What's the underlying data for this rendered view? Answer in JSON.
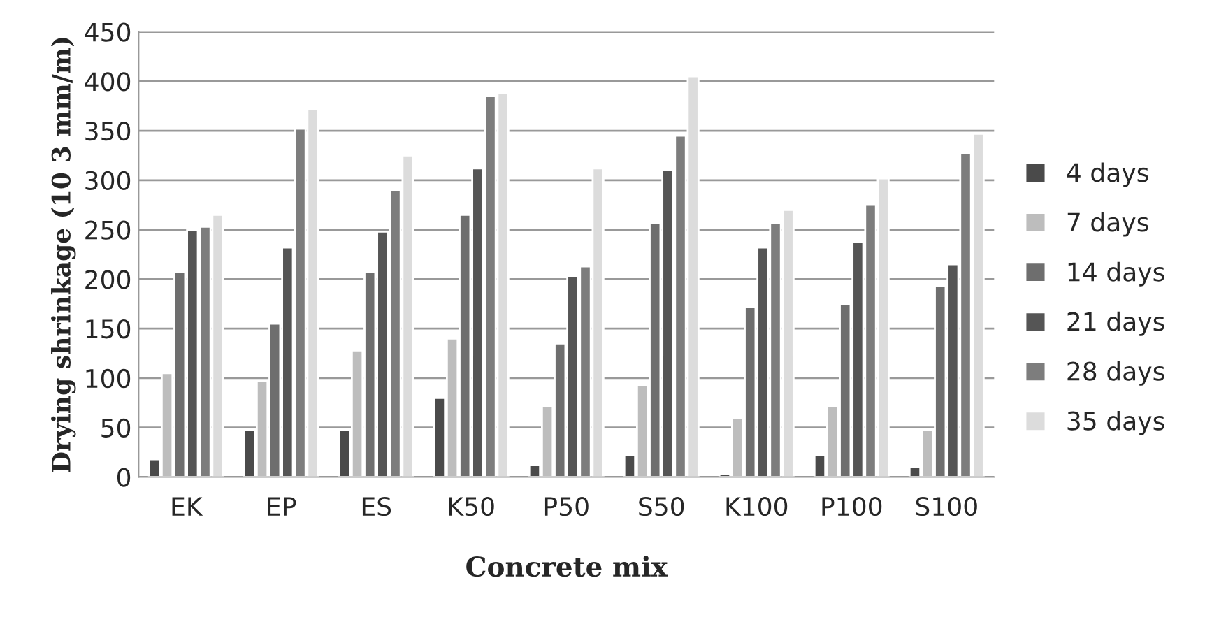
{
  "chart_data": {
    "type": "bar",
    "xlabel": "Concrete mix",
    "ylabel": "Drying shrinkage (10 3 mm/m)",
    "categories": [
      "EK",
      "EP",
      "ES",
      "K50",
      "P50",
      "S50",
      "K100",
      "P100",
      "S100"
    ],
    "series": [
      {
        "name": "4 days",
        "color": "#4a4a4a",
        "values": [
          18,
          48,
          48,
          80,
          12,
          22,
          3,
          22,
          10
        ]
      },
      {
        "name": "7 days",
        "color": "#bdbdbd",
        "values": [
          105,
          97,
          128,
          140,
          72,
          93,
          60,
          72,
          48
        ]
      },
      {
        "name": "14 days",
        "color": "#6e6e6e",
        "values": [
          207,
          155,
          207,
          265,
          135,
          257,
          172,
          175,
          193
        ]
      },
      {
        "name": "21 days",
        "color": "#555555",
        "values": [
          250,
          232,
          248,
          312,
          203,
          310,
          232,
          238,
          215
        ]
      },
      {
        "name": "28 days",
        "color": "#7d7d7d",
        "values": [
          253,
          352,
          290,
          385,
          213,
          345,
          257,
          275,
          327
        ]
      },
      {
        "name": "35 days",
        "color": "#dcdcdc",
        "values": [
          265,
          372,
          325,
          388,
          312,
          405,
          270,
          302,
          347
        ]
      }
    ],
    "ylim": [
      0,
      450
    ],
    "yticks": [
      0,
      50,
      100,
      150,
      200,
      250,
      300,
      350,
      400,
      450
    ],
    "grid": "y",
    "legend": "right"
  }
}
